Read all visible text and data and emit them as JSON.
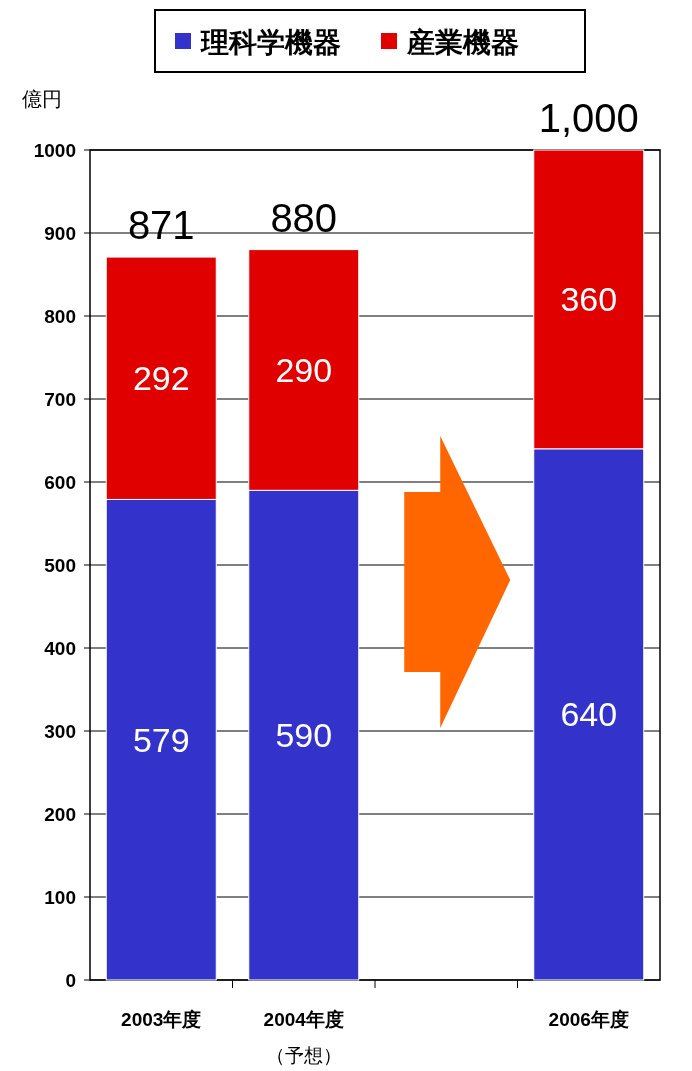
{
  "chart_data": {
    "type": "bar",
    "stacked": true,
    "ylabel": "億円",
    "categories": [
      "2003年度",
      "2004年度（予想）",
      null,
      "2006年度"
    ],
    "series": [
      {
        "name": "理科学機器",
        "color": "#3333cc",
        "values": [
          579,
          590,
          null,
          640
        ]
      },
      {
        "name": "産業機器",
        "color": "#e00000",
        "values": [
          292,
          290,
          null,
          360
        ]
      }
    ],
    "totals": [
      "871",
      "880",
      null,
      "1,000"
    ],
    "data_labels": true,
    "ylim": [
      0,
      1000
    ],
    "yticks": [
      0,
      100,
      200,
      300,
      400,
      500,
      600,
      700,
      800,
      900,
      1000
    ],
    "grid": "y",
    "legend": "top"
  }
}
